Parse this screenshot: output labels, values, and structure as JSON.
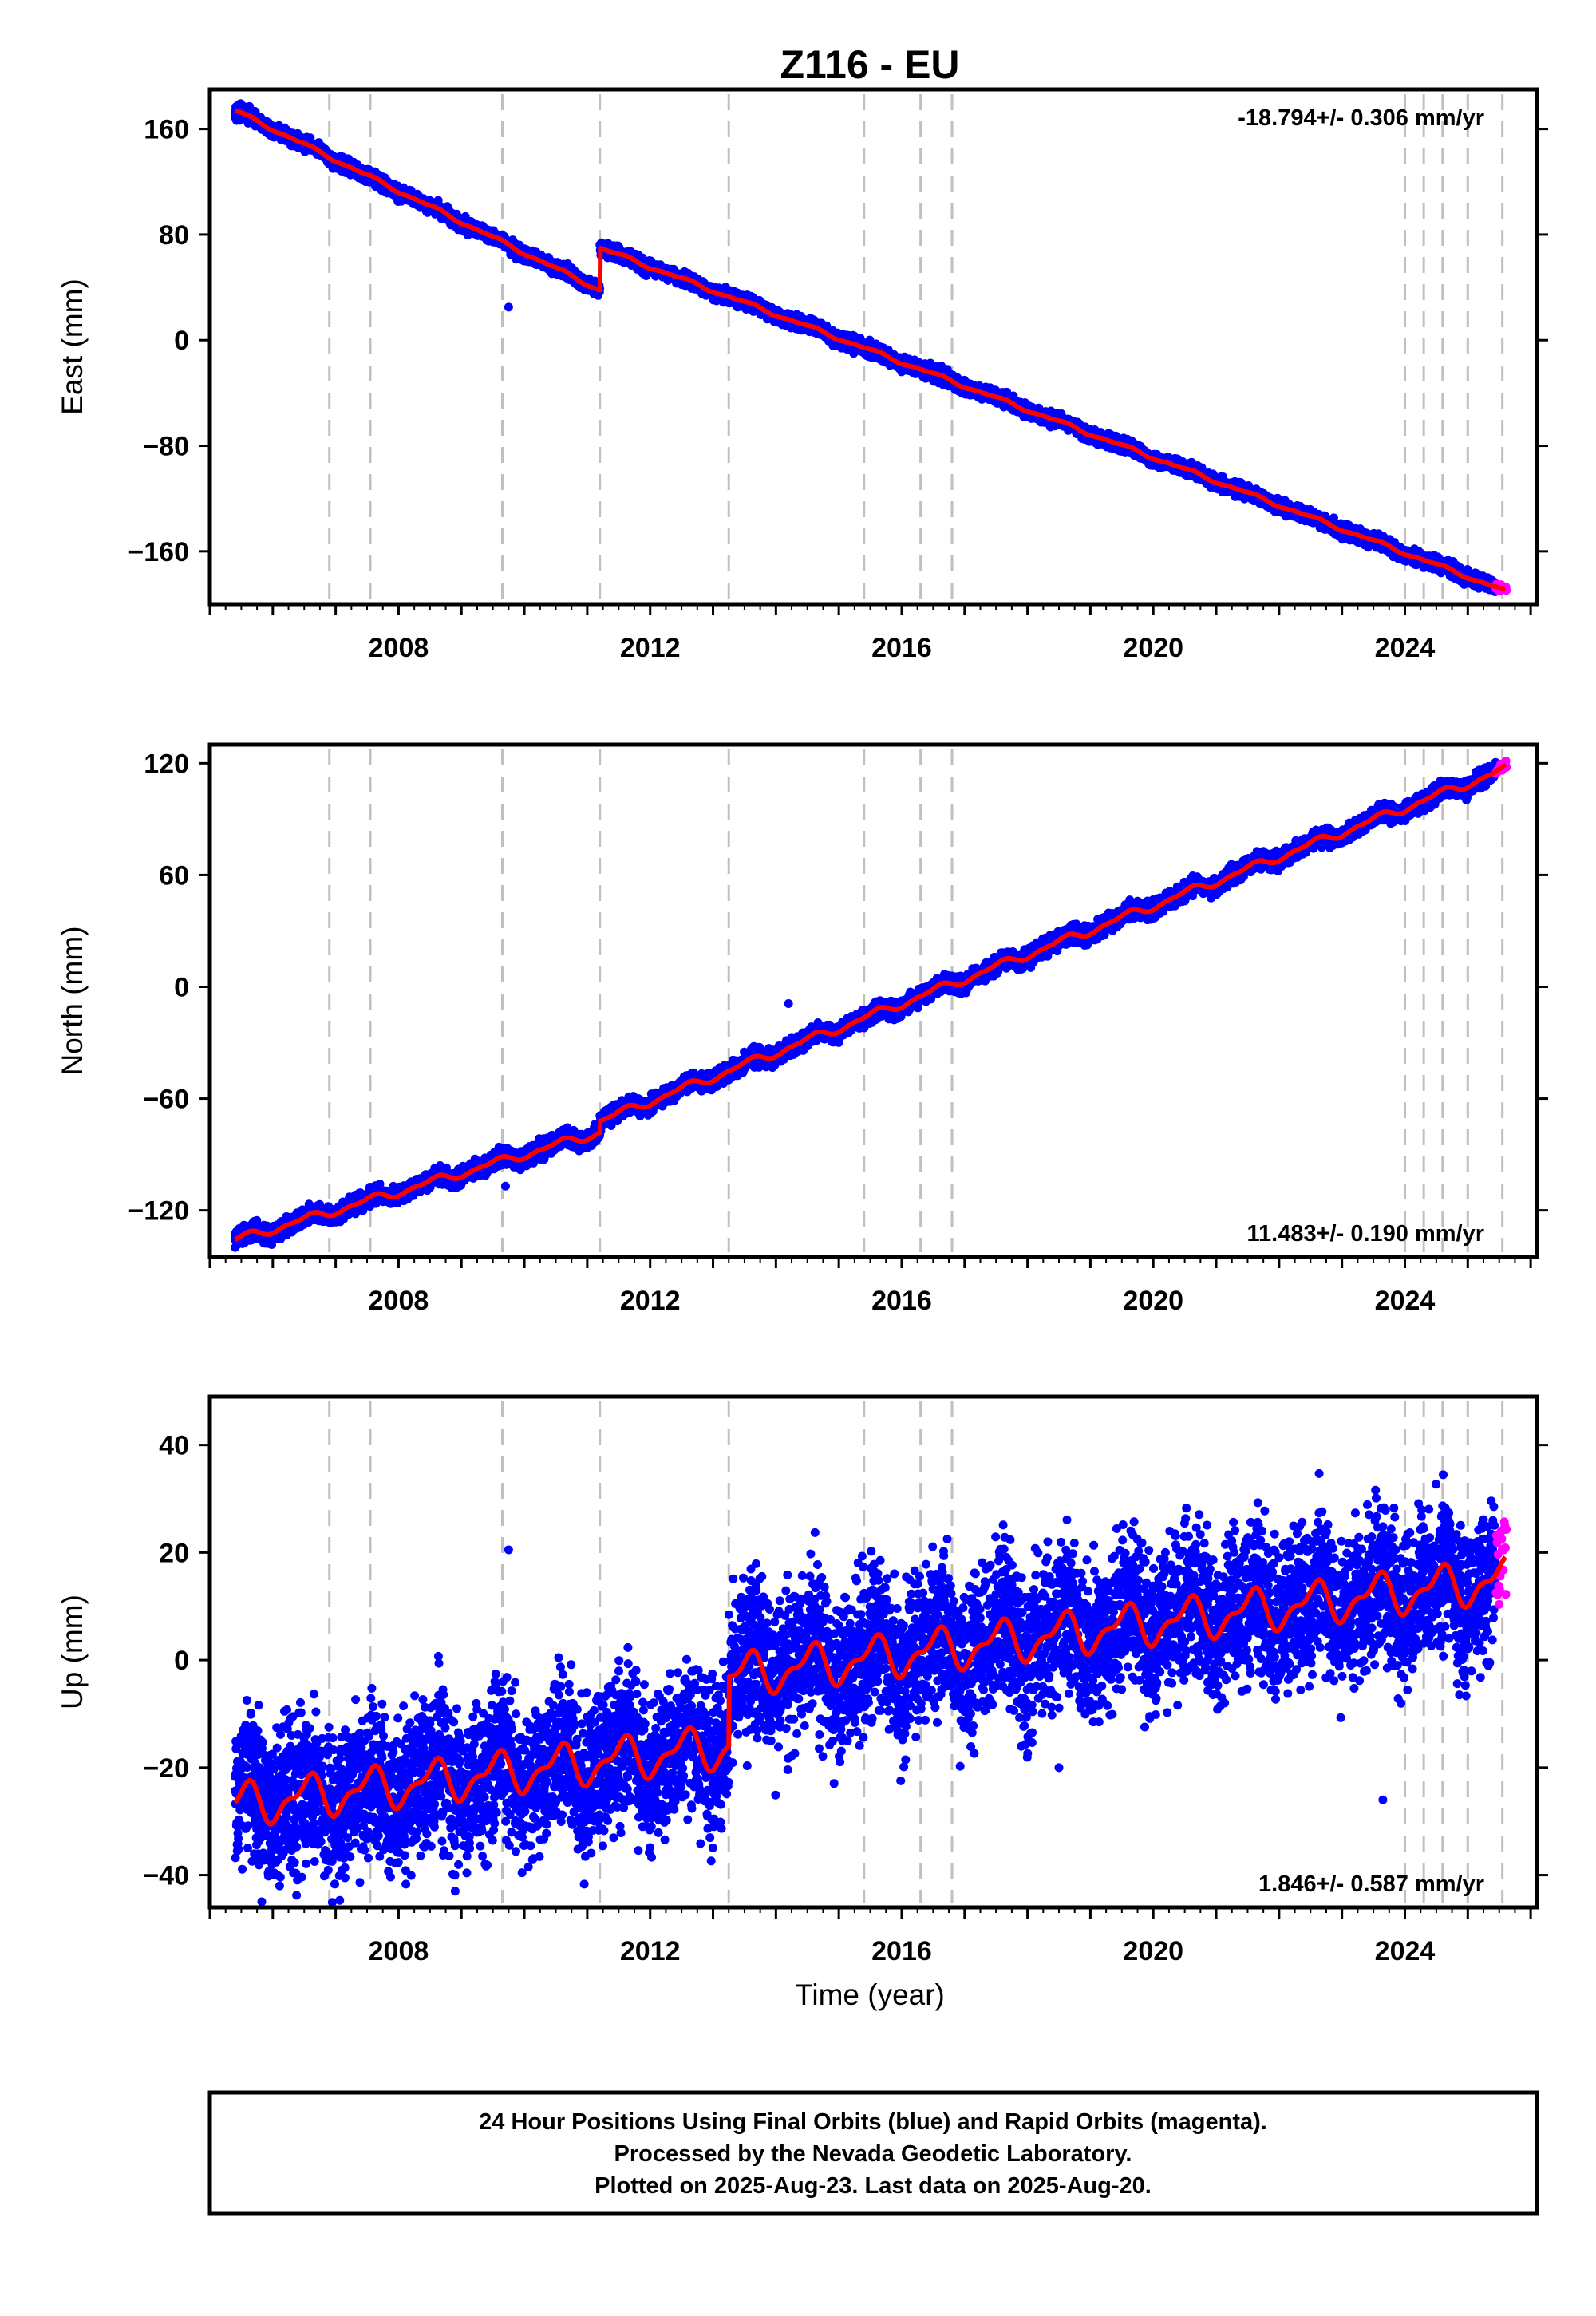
{
  "title": "Z116 - EU",
  "xlabel": "Time (year)",
  "footer": {
    "line1": "24 Hour Positions Using Final Orbits (blue) and Rapid Orbits (magenta).",
    "line2": "Processed by the Nevada Geodetic Laboratory.",
    "line3": "Plotted on 2025-Aug-23. Last data on 2025-Aug-20."
  },
  "colors": {
    "final_points": "#0000ff",
    "rapid_points": "#ff00ff",
    "model_line": "#ff0000",
    "step_lines": "#c0c0c0"
  },
  "chart_data": [
    {
      "type": "scatter",
      "component": "East",
      "ylabel": "East (mm)",
      "rate": "-18.794+/- 0.306 mm/yr",
      "rate_position": "top-right",
      "xlim": [
        2005.0,
        2026.1
      ],
      "ylim": [
        -200,
        190
      ],
      "xticks": [
        2008,
        2012,
        2016,
        2020,
        2024
      ],
      "xtick_labels": [
        "2008",
        "2012",
        "2016",
        "2020",
        "2024"
      ],
      "yticks": [
        160,
        80,
        0,
        -80,
        -160
      ],
      "ytick_labels": [
        "160",
        "80",
        "0",
        "−80",
        "−160"
      ],
      "step_epochs": [
        2006.9,
        2007.55,
        2009.65,
        2011.2,
        2013.25,
        2015.4,
        2016.3,
        2016.8,
        2024.0,
        2024.3,
        2024.6,
        2025.0,
        2025.55
      ],
      "model": {
        "segments": [
          {
            "x0": 2005.4,
            "x1": 2011.2,
            "y0": 174,
            "y1": 38
          },
          {
            "x0": 2011.2,
            "x1": 2025.6,
            "y0": 70,
            "y1": -190
          }
        ],
        "seasonal_amplitude": 1.5,
        "outliers": [
          [
            2009.75,
            25
          ]
        ],
        "noise": 2.5
      },
      "rapid_range": [
        2025.45,
        2025.62
      ]
    },
    {
      "type": "scatter",
      "component": "North",
      "ylabel": "North (mm)",
      "rate": "11.483+/- 0.190 mm/yr",
      "rate_position": "bottom-right",
      "xlim": [
        2005.0,
        2026.1
      ],
      "ylim": [
        -145,
        130
      ],
      "xticks": [
        2008,
        2012,
        2016,
        2020,
        2024
      ],
      "xtick_labels": [
        "2008",
        "2012",
        "2016",
        "2020",
        "2024"
      ],
      "yticks": [
        120,
        60,
        0,
        -60,
        -120
      ],
      "ytick_labels": [
        "120",
        "60",
        "0",
        "−60",
        "−120"
      ],
      "step_epochs": [
        2006.9,
        2007.55,
        2009.65,
        2011.2,
        2013.25,
        2015.4,
        2016.3,
        2016.8,
        2024.0,
        2024.3,
        2024.6,
        2025.0,
        2025.55
      ],
      "model": {
        "segments": [
          {
            "x0": 2005.4,
            "x1": 2011.2,
            "y0": -136,
            "y1": -78
          },
          {
            "x0": 2011.2,
            "x1": 2025.6,
            "y0": -72,
            "y1": 117
          }
        ],
        "seasonal_amplitude": 2.5,
        "outliers": [
          [
            2009.7,
            -107
          ],
          [
            2014.2,
            -9
          ]
        ],
        "noise": 2.2
      },
      "rapid_range": [
        2025.45,
        2025.62
      ]
    },
    {
      "type": "scatter",
      "component": "Up",
      "ylabel": "Up (mm)",
      "rate": "1.846+/- 0.587 mm/yr",
      "rate_position": "bottom-right",
      "xlim": [
        2005.0,
        2026.1
      ],
      "ylim": [
        -46,
        49
      ],
      "xticks": [
        2008,
        2012,
        2016,
        2020,
        2024
      ],
      "xtick_labels": [
        "2008",
        "2012",
        "2016",
        "2020",
        "2024"
      ],
      "yticks": [
        40,
        20,
        0,
        -20,
        -40
      ],
      "ytick_labels": [
        "40",
        "20",
        "0",
        "−20",
        "−40"
      ],
      "step_epochs": [
        2006.9,
        2007.55,
        2009.65,
        2011.2,
        2013.25,
        2015.4,
        2016.3,
        2016.8,
        2024.0,
        2024.3,
        2024.6,
        2025.0,
        2025.55
      ],
      "model": {
        "segments": [
          {
            "x0": 2005.4,
            "x1": 2013.25,
            "y0": -27,
            "y1": -16
          },
          {
            "x0": 2013.25,
            "x1": 2025.6,
            "y0": -3,
            "y1": 15
          }
        ],
        "seasonal_amplitude": 4.5,
        "outliers": [
          [
            2009.75,
            20.5
          ],
          [
            2023.65,
            -26
          ],
          [
            2018.5,
            -20
          ],
          [
            2008.9,
            -43
          ]
        ],
        "noise": 7.0
      },
      "rapid_range": [
        2025.45,
        2025.62
      ]
    }
  ]
}
